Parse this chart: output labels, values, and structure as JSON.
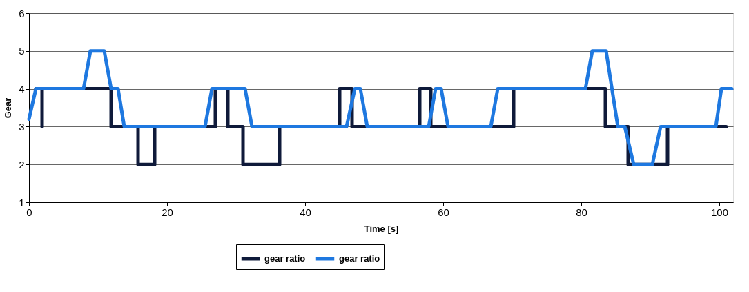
{
  "chart_data": {
    "type": "line",
    "xlabel": "Time [s]",
    "ylabel": "Gear",
    "xlim": [
      0,
      102
    ],
    "xticks": [
      0,
      20,
      40,
      60,
      80,
      100
    ],
    "ylim": [
      1,
      6
    ],
    "yticks": [
      1,
      2,
      3,
      4,
      5,
      6
    ],
    "grid": "y",
    "legend": "bottom",
    "marker": "none",
    "line_style": "solid",
    "series": [
      {
        "name": "gear ratio",
        "color": "#0f1a3a",
        "x": [
          1.0,
          1.9,
          1.9,
          1.9,
          11.9,
          11.9,
          15.8,
          15.8,
          18.2,
          18.2,
          27.0,
          27.0,
          28.8,
          28.8,
          31.0,
          31.0,
          36.3,
          36.3,
          45.0,
          45.0,
          46.8,
          46.8,
          56.6,
          56.6,
          58.2,
          58.2,
          70.2,
          70.2,
          83.5,
          83.5,
          86.8,
          86.8,
          92.5,
          92.5,
          101.0
        ],
        "values": [
          4,
          4,
          3,
          4,
          4,
          3,
          3,
          2,
          2,
          3,
          3,
          4,
          4,
          3,
          3,
          2,
          2,
          3,
          3,
          4,
          4,
          3,
          3,
          4,
          4,
          3,
          3,
          4,
          4,
          3,
          3,
          2,
          2,
          3,
          3
        ]
      },
      {
        "name": "gear ratio",
        "color": "#1e78e0",
        "x": [
          0,
          1.0,
          7.9,
          8.9,
          10.9,
          11.9,
          12.9,
          13.8,
          25.5,
          26.5,
          31.3,
          32.3,
          46.0,
          47.2,
          48.0,
          49.0,
          57.9,
          58.9,
          59.7,
          60.7,
          66.9,
          67.9,
          80.6,
          81.6,
          83.6,
          85.3,
          86.3,
          87.6,
          90.3,
          91.5,
          99.5,
          100.3,
          101.8
        ],
        "values": [
          3.2,
          4,
          4,
          5,
          5,
          4,
          4,
          3,
          3,
          4,
          4,
          3,
          3,
          4,
          4,
          3,
          3,
          4,
          4,
          3,
          3,
          4,
          4,
          5,
          5,
          3,
          3,
          2,
          2,
          3,
          3,
          4,
          4
        ]
      }
    ]
  }
}
